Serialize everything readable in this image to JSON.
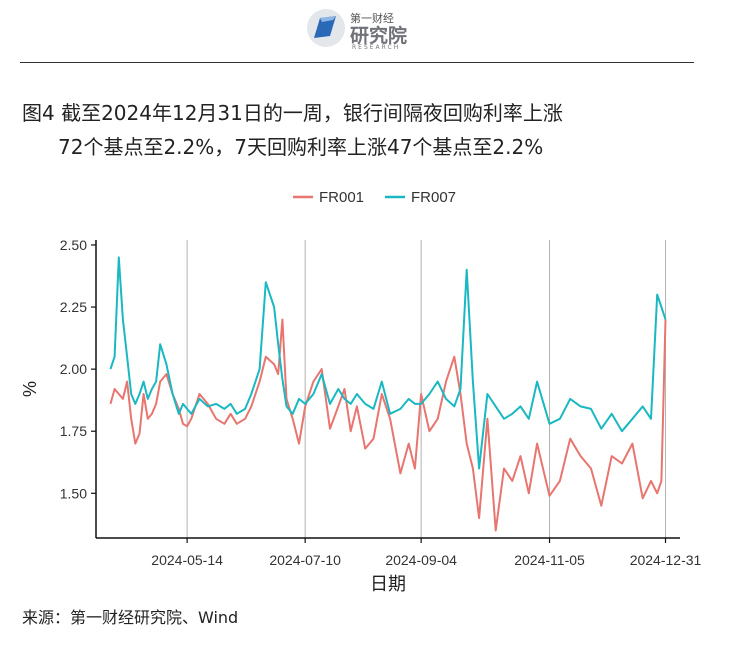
{
  "header": {
    "brand_top": "第一财经",
    "brand_main": "研究院",
    "brand_sub": "RESEARCH"
  },
  "title": {
    "line1": "图4  截至2024年12月31日的一周，银行间隔夜回购利率上涨",
    "line2": "72个基点至2.2%，7天回购利率上涨47个基点至2.2%"
  },
  "source": "来源：第一财经研究院、Wind",
  "colors": {
    "fr001": "#e8756f",
    "fr007": "#1ab8c2",
    "grid": "#b3b3b3",
    "axis": "#111111"
  },
  "chart_data": {
    "type": "line",
    "xlabel": "日期",
    "ylabel": "%",
    "ylim": [
      1.32,
      2.52
    ],
    "yticks": [
      1.5,
      1.75,
      2.0,
      2.25,
      2.5
    ],
    "ytick_labels": [
      "1.50",
      "1.75",
      "2.00",
      "2.25",
      "2.50"
    ],
    "xlim": [
      "2024-03-31",
      "2025-01-07"
    ],
    "xticks": [
      "2024-05-14",
      "2024-07-10",
      "2024-09-04",
      "2024-11-05",
      "2024-12-31"
    ],
    "grid": "vertical-major",
    "legend_position": "top",
    "x": [
      "2024-04-07",
      "2024-04-09",
      "2024-04-11",
      "2024-04-13",
      "2024-04-15",
      "2024-04-17",
      "2024-04-19",
      "2024-04-21",
      "2024-04-23",
      "2024-04-25",
      "2024-04-27",
      "2024-04-29",
      "2024-05-01",
      "2024-05-04",
      "2024-05-07",
      "2024-05-10",
      "2024-05-12",
      "2024-05-14",
      "2024-05-16",
      "2024-05-20",
      "2024-05-24",
      "2024-05-28",
      "2024-06-01",
      "2024-06-04",
      "2024-06-07",
      "2024-06-11",
      "2024-06-14",
      "2024-06-18",
      "2024-06-21",
      "2024-06-25",
      "2024-06-27",
      "2024-06-29",
      "2024-07-01",
      "2024-07-04",
      "2024-07-07",
      "2024-07-10",
      "2024-07-14",
      "2024-07-18",
      "2024-07-22",
      "2024-07-26",
      "2024-07-29",
      "2024-08-01",
      "2024-08-04",
      "2024-08-08",
      "2024-08-12",
      "2024-08-16",
      "2024-08-20",
      "2024-08-25",
      "2024-08-29",
      "2024-09-01",
      "2024-09-04",
      "2024-09-08",
      "2024-09-12",
      "2024-09-16",
      "2024-09-20",
      "2024-09-23",
      "2024-09-26",
      "2024-09-29",
      "2024-10-02",
      "2024-10-06",
      "2024-10-10",
      "2024-10-14",
      "2024-10-18",
      "2024-10-22",
      "2024-10-26",
      "2024-10-30",
      "2024-11-05",
      "2024-11-10",
      "2024-11-15",
      "2024-11-20",
      "2024-11-25",
      "2024-11-30",
      "2024-12-05",
      "2024-12-10",
      "2024-12-15",
      "2024-12-20",
      "2024-12-24",
      "2024-12-27",
      "2024-12-29",
      "2024-12-31"
    ],
    "series": [
      {
        "name": "FR001",
        "color": "#e8756f",
        "values": [
          1.86,
          1.92,
          1.9,
          1.88,
          1.95,
          1.8,
          1.7,
          1.74,
          1.9,
          1.8,
          1.82,
          1.86,
          1.95,
          1.98,
          1.9,
          1.84,
          1.78,
          1.77,
          1.8,
          1.9,
          1.86,
          1.8,
          1.78,
          1.82,
          1.78,
          1.8,
          1.85,
          1.95,
          2.05,
          2.02,
          1.98,
          2.2,
          1.88,
          1.8,
          1.7,
          1.85,
          1.95,
          2.0,
          1.76,
          1.85,
          1.92,
          1.75,
          1.85,
          1.68,
          1.72,
          1.9,
          1.8,
          1.58,
          1.7,
          1.6,
          1.9,
          1.75,
          1.8,
          1.95,
          2.05,
          1.9,
          1.7,
          1.6,
          1.4,
          1.8,
          1.35,
          1.6,
          1.55,
          1.65,
          1.5,
          1.7,
          1.49,
          1.55,
          1.72,
          1.65,
          1.6,
          1.45,
          1.65,
          1.62,
          1.7,
          1.48,
          1.55,
          1.5,
          1.55,
          2.2
        ]
      },
      {
        "name": "FR007",
        "color": "#1ab8c2",
        "values": [
          2.0,
          2.05,
          2.45,
          2.2,
          2.05,
          1.9,
          1.86,
          1.9,
          1.95,
          1.88,
          1.92,
          1.95,
          2.1,
          2.02,
          1.9,
          1.82,
          1.86,
          1.84,
          1.82,
          1.88,
          1.85,
          1.86,
          1.84,
          1.86,
          1.82,
          1.84,
          1.9,
          2.0,
          2.35,
          2.25,
          2.1,
          1.96,
          1.85,
          1.82,
          1.88,
          1.86,
          1.9,
          1.98,
          1.86,
          1.92,
          1.88,
          1.86,
          1.9,
          1.86,
          1.84,
          1.95,
          1.82,
          1.84,
          1.88,
          1.86,
          1.86,
          1.9,
          1.95,
          1.88,
          1.85,
          1.92,
          2.4,
          1.95,
          1.6,
          1.9,
          1.85,
          1.8,
          1.82,
          1.85,
          1.8,
          1.95,
          1.78,
          1.8,
          1.88,
          1.85,
          1.84,
          1.76,
          1.82,
          1.75,
          1.8,
          1.85,
          1.8,
          2.3,
          2.25,
          2.2
        ]
      }
    ]
  }
}
